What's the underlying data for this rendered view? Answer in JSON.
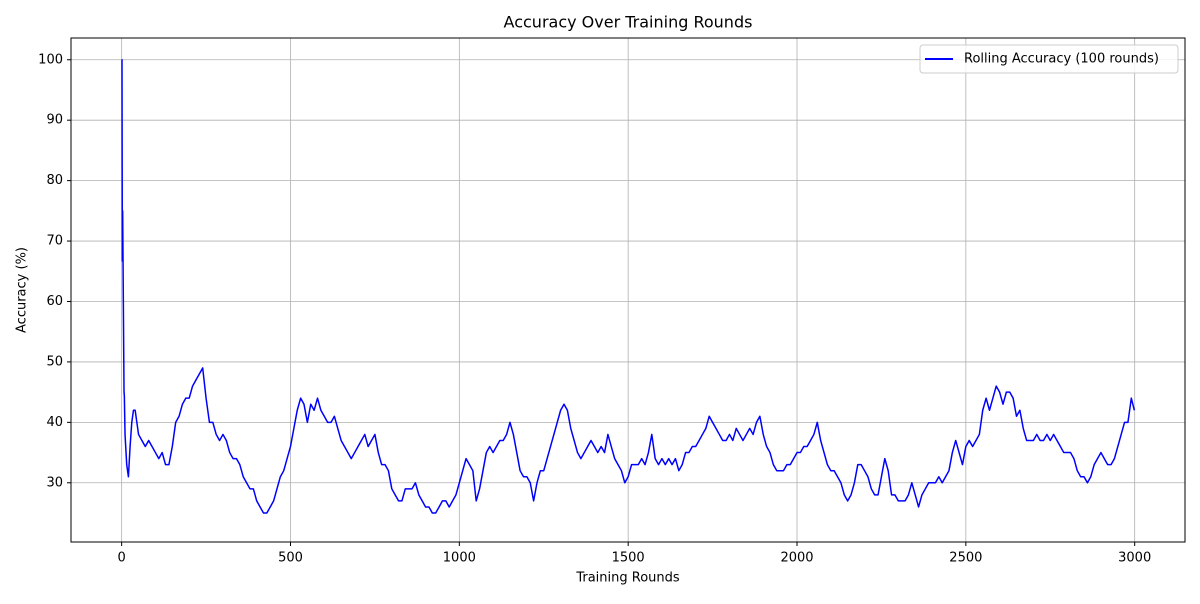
{
  "chart_data": {
    "type": "line",
    "title": "Accuracy Over Training Rounds",
    "x_label": "Training Rounds",
    "y_label": "Accuracy (%)",
    "x": [
      0,
      1,
      2,
      3,
      5,
      7,
      8,
      10,
      15,
      20,
      25,
      30,
      35,
      40,
      50,
      60,
      70,
      80,
      90,
      100,
      110,
      120,
      130,
      140,
      150,
      160,
      170,
      180,
      190,
      200,
      210,
      220,
      230,
      240,
      250,
      260,
      270,
      280,
      290,
      300,
      310,
      320,
      330,
      340,
      350,
      360,
      370,
      380,
      390,
      400,
      410,
      420,
      430,
      440,
      450,
      460,
      470,
      480,
      490,
      500,
      510,
      520,
      530,
      540,
      550,
      560,
      570,
      580,
      590,
      600,
      610,
      620,
      630,
      640,
      650,
      660,
      670,
      680,
      690,
      700,
      710,
      720,
      730,
      740,
      750,
      760,
      770,
      780,
      790,
      800,
      810,
      820,
      830,
      840,
      850,
      860,
      870,
      880,
      890,
      900,
      910,
      920,
      930,
      940,
      950,
      960,
      970,
      980,
      990,
      1000,
      1010,
      1020,
      1030,
      1040,
      1050,
      1060,
      1070,
      1080,
      1090,
      1100,
      1110,
      1120,
      1130,
      1140,
      1150,
      1160,
      1170,
      1180,
      1190,
      1200,
      1210,
      1220,
      1230,
      1240,
      1250,
      1260,
      1270,
      1280,
      1290,
      1300,
      1310,
      1320,
      1330,
      1340,
      1350,
      1360,
      1370,
      1380,
      1390,
      1400,
      1410,
      1420,
      1430,
      1440,
      1450,
      1460,
      1470,
      1480,
      1490,
      1500,
      1510,
      1520,
      1530,
      1540,
      1550,
      1560,
      1570,
      1580,
      1590,
      1600,
      1610,
      1620,
      1630,
      1640,
      1650,
      1660,
      1670,
      1680,
      1690,
      1700,
      1710,
      1720,
      1730,
      1740,
      1750,
      1760,
      1770,
      1780,
      1790,
      1800,
      1810,
      1820,
      1830,
      1840,
      1850,
      1860,
      1870,
      1880,
      1890,
      1900,
      1910,
      1920,
      1930,
      1940,
      1950,
      1960,
      1970,
      1980,
      1990,
      2000,
      2010,
      2020,
      2030,
      2040,
      2050,
      2060,
      2070,
      2080,
      2090,
      2100,
      2110,
      2120,
      2130,
      2140,
      2150,
      2160,
      2170,
      2180,
      2190,
      2200,
      2210,
      2220,
      2230,
      2240,
      2250,
      2260,
      2270,
      2280,
      2290,
      2300,
      2310,
      2320,
      2330,
      2340,
      2350,
      2360,
      2370,
      2380,
      2390,
      2400,
      2410,
      2420,
      2430,
      2440,
      2450,
      2460,
      2470,
      2480,
      2490,
      2500,
      2510,
      2520,
      2530,
      2540,
      2550,
      2560,
      2570,
      2580,
      2590,
      2600,
      2610,
      2620,
      2630,
      2640,
      2650,
      2660,
      2670,
      2680,
      2690,
      2700,
      2710,
      2720,
      2730,
      2740,
      2750,
      2760,
      2770,
      2780,
      2790,
      2800,
      2810,
      2820,
      2830,
      2840,
      2850,
      2860,
      2870,
      2880,
      2890,
      2900,
      2910,
      2920,
      2930,
      2940,
      2950,
      2960,
      2970,
      2980,
      2990,
      2999
    ],
    "series": [
      {
        "name": "Rolling Accuracy (100 rounds)",
        "color": "#0000ff",
        "values": [
          100,
          100,
          66.7,
          75,
          60,
          45,
          44.4,
          38,
          33,
          31,
          36,
          40,
          42,
          42,
          38,
          37,
          36,
          37,
          36,
          35,
          34,
          35,
          33,
          33,
          36,
          40,
          41,
          43,
          44,
          44,
          46,
          47,
          48,
          49,
          44,
          40,
          40,
          38,
          37,
          38,
          37,
          35,
          34,
          34,
          33,
          31,
          30,
          29,
          29,
          27,
          26,
          25,
          25,
          26,
          27,
          29,
          31,
          32,
          34,
          36,
          39,
          42,
          44,
          43,
          40,
          43,
          42,
          44,
          42,
          41,
          40,
          40,
          41,
          39,
          37,
          36,
          35,
          34,
          35,
          36,
          37,
          38,
          36,
          37,
          38,
          35,
          33,
          33,
          32,
          29,
          28,
          27,
          27,
          29,
          29,
          29,
          30,
          28,
          27,
          26,
          26,
          25,
          25,
          26,
          27,
          27,
          26,
          27,
          28,
          30,
          32,
          34,
          33,
          32,
          27,
          29,
          32,
          35,
          36,
          35,
          36,
          37,
          37,
          38,
          40,
          38,
          35,
          32,
          31,
          31,
          30,
          27,
          30,
          32,
          32,
          34,
          36,
          38,
          40,
          42,
          43,
          42,
          39,
          37,
          35,
          34,
          35,
          36,
          37,
          36,
          35,
          36,
          35,
          38,
          36,
          34,
          33,
          32,
          30,
          31,
          33,
          33,
          33,
          34,
          33,
          35,
          38,
          34,
          33,
          34,
          33,
          34,
          33,
          34,
          32,
          33,
          35,
          35,
          36,
          36,
          37,
          38,
          39,
          41,
          40,
          39,
          38,
          37,
          37,
          38,
          37,
          39,
          38,
          37,
          38,
          39,
          38,
          40,
          41,
          38,
          36,
          35,
          33,
          32,
          32,
          32,
          33,
          33,
          34,
          35,
          35,
          36,
          36,
          37,
          38,
          40,
          37,
          35,
          33,
          32,
          32,
          31,
          30,
          28,
          27,
          28,
          30,
          33,
          33,
          32,
          31,
          29,
          28,
          28,
          31,
          34,
          32,
          28,
          28,
          27,
          27,
          27,
          28,
          30,
          28,
          26,
          28,
          29,
          30,
          30,
          30,
          31,
          30,
          31,
          32,
          35,
          37,
          35,
          33,
          36,
          37,
          36,
          37,
          38,
          42,
          44,
          42,
          44,
          46,
          45,
          43,
          45,
          45,
          44,
          41,
          42,
          39,
          37,
          37,
          37,
          38,
          37,
          37,
          38,
          37,
          38,
          37,
          36,
          35,
          35,
          35,
          34,
          32,
          31,
          31,
          30,
          31,
          33,
          34,
          35,
          34,
          33,
          33,
          34,
          36,
          38,
          40,
          40,
          44,
          42
        ]
      }
    ],
    "xlim": [
      -150,
      3149
    ],
    "ylim": [
      20.2,
      103.6
    ],
    "xticks": [
      0,
      500,
      1000,
      1500,
      2000,
      2500,
      3000
    ],
    "yticks": [
      30,
      40,
      50,
      60,
      70,
      80,
      90,
      100
    ],
    "grid": true,
    "legend": "upper right"
  }
}
